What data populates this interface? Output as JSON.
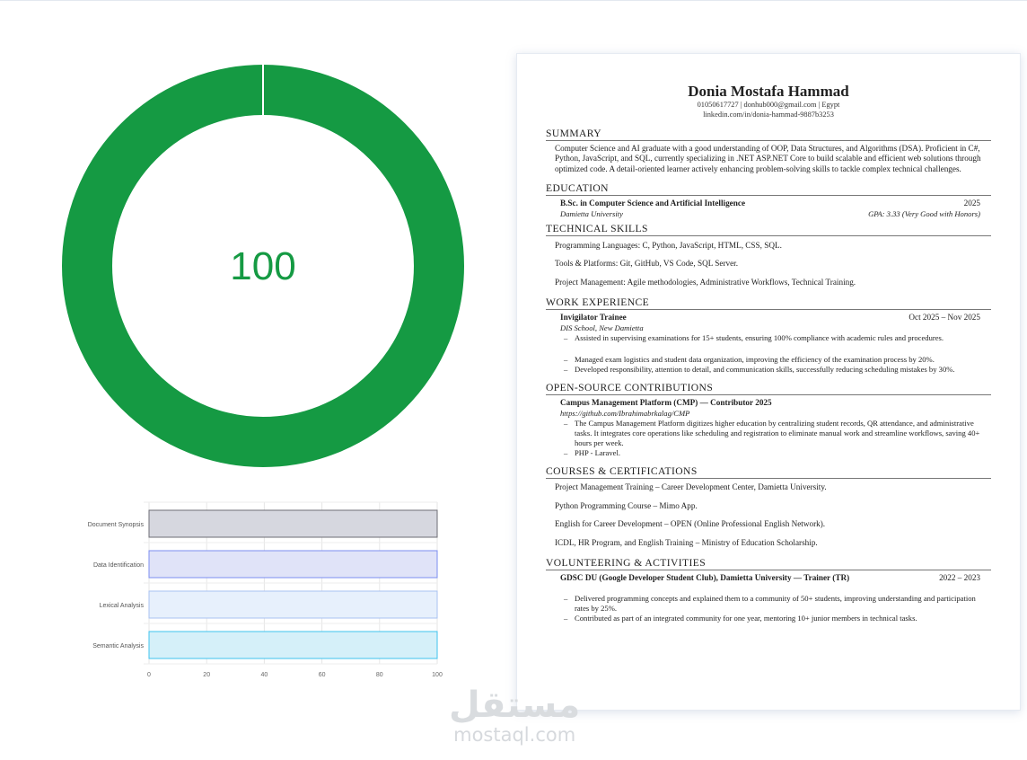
{
  "gauge": {
    "value": 100,
    "max": 100,
    "label": "100",
    "color": "#159a43"
  },
  "chart_data": {
    "type": "bar",
    "orientation": "horizontal",
    "categories": [
      "Document Synopsis",
      "Data Identification",
      "Lexical Analysis",
      "Semantic Analysis"
    ],
    "values": [
      100,
      100,
      100,
      100
    ],
    "xlim": [
      0,
      100
    ],
    "xticks": [
      "0",
      "20",
      "40",
      "60",
      "80",
      "100"
    ],
    "grid": true,
    "colors": [
      {
        "fill": "#d6d7df",
        "stroke": "#6e6e74"
      },
      {
        "fill": "#e0e3f8",
        "stroke": "#7b8ef0"
      },
      {
        "fill": "#e7f0fc",
        "stroke": "#a9c2f2"
      },
      {
        "fill": "#d5f0f9",
        "stroke": "#3fc3ee"
      }
    ]
  },
  "resume": {
    "name": "Donia Mostafa Hammad",
    "contact1": "01050617727 | donhub000@gmail.com | Egypt",
    "contact2": "linkedin.com/in/donia-hammad-9887b3253",
    "summary_title": "SUMMARY",
    "summary": "Computer Science and AI graduate with a good understanding of OOP, Data Structures, and Algorithms (DSA). Proficient in C#, Python, JavaScript, and SQL, currently specializing in .NET ASP.NET Core to build scalable and efficient web solutions through optimized code. A detail-oriented learner actively enhancing problem-solving skills to tackle complex technical challenges.",
    "education_title": "EDUCATION",
    "degree": "B.Sc. in Computer Science and Artificial Intelligence",
    "degree_year": "2025",
    "university": "Damietta University",
    "gpa": "GPA: 3.33 (Very Good with Honors)",
    "skills_title": "TECHNICAL SKILLS",
    "skills": [
      "Programming Languages: C, Python, JavaScript, HTML, CSS, SQL.",
      "Tools & Platforms: Git, GitHub, VS Code, SQL Server.",
      "Project Management: Agile methodologies, Administrative Workflows, Technical Training."
    ],
    "work_title": "WORK EXPERIENCE",
    "job": "Invigilator Trainee",
    "job_dates": "Oct 2025 – Nov 2025",
    "job_place": "DIS School, New Damietta",
    "job_bullets": [
      "Assisted in supervising examinations for 15+ students, ensuring 100% compliance with academic rules and procedures.",
      "Managed exam logistics and student data organization, improving the efficiency of the examination process by 20%.",
      "Developed responsibility, attention to detail, and communication skills, successfully reducing scheduling mistakes by 30%."
    ],
    "os_title": "OPEN-SOURCE CONTRIBUTIONS",
    "project": "Campus Management Platform (CMP) — Contributor 2025",
    "project_url": "https://github.com/Ibrahimabrkalag/CMP",
    "project_bullets": [
      "The Campus Management Platform digitizes higher education by centralizing student records, QR attendance, and administrative tasks. It integrates core operations like scheduling and registration to eliminate manual work and streamline workflows, saving 40+ hours per week.",
      "PHP - Laravel."
    ],
    "courses_title": "COURSES & CERTIFICATIONS",
    "courses": [
      "Project Management Training – Career Development Center, Damietta University.",
      "Python Programming Course – Mimo App.",
      "English for Career Development – OPEN (Online Professional English Network).",
      "ICDL, HR Program, and English Training – Ministry of Education Scholarship."
    ],
    "vol_title": "VOLUNTEERING & ACTIVITIES",
    "vol_role": "GDSC DU (Google Developer Student Club), Damietta University — Trainer (TR)",
    "vol_dates": "2022 – 2023",
    "vol_bullets": [
      "Delivered programming concepts and explained them to a community of 50+ students, improving understanding and participation rates by 25%.",
      "Contributed as part of an integrated community for one year, mentoring 10+ junior members in technical tasks."
    ]
  },
  "watermark": {
    "arabic": "مستقل",
    "latin": "mostaql.com"
  }
}
